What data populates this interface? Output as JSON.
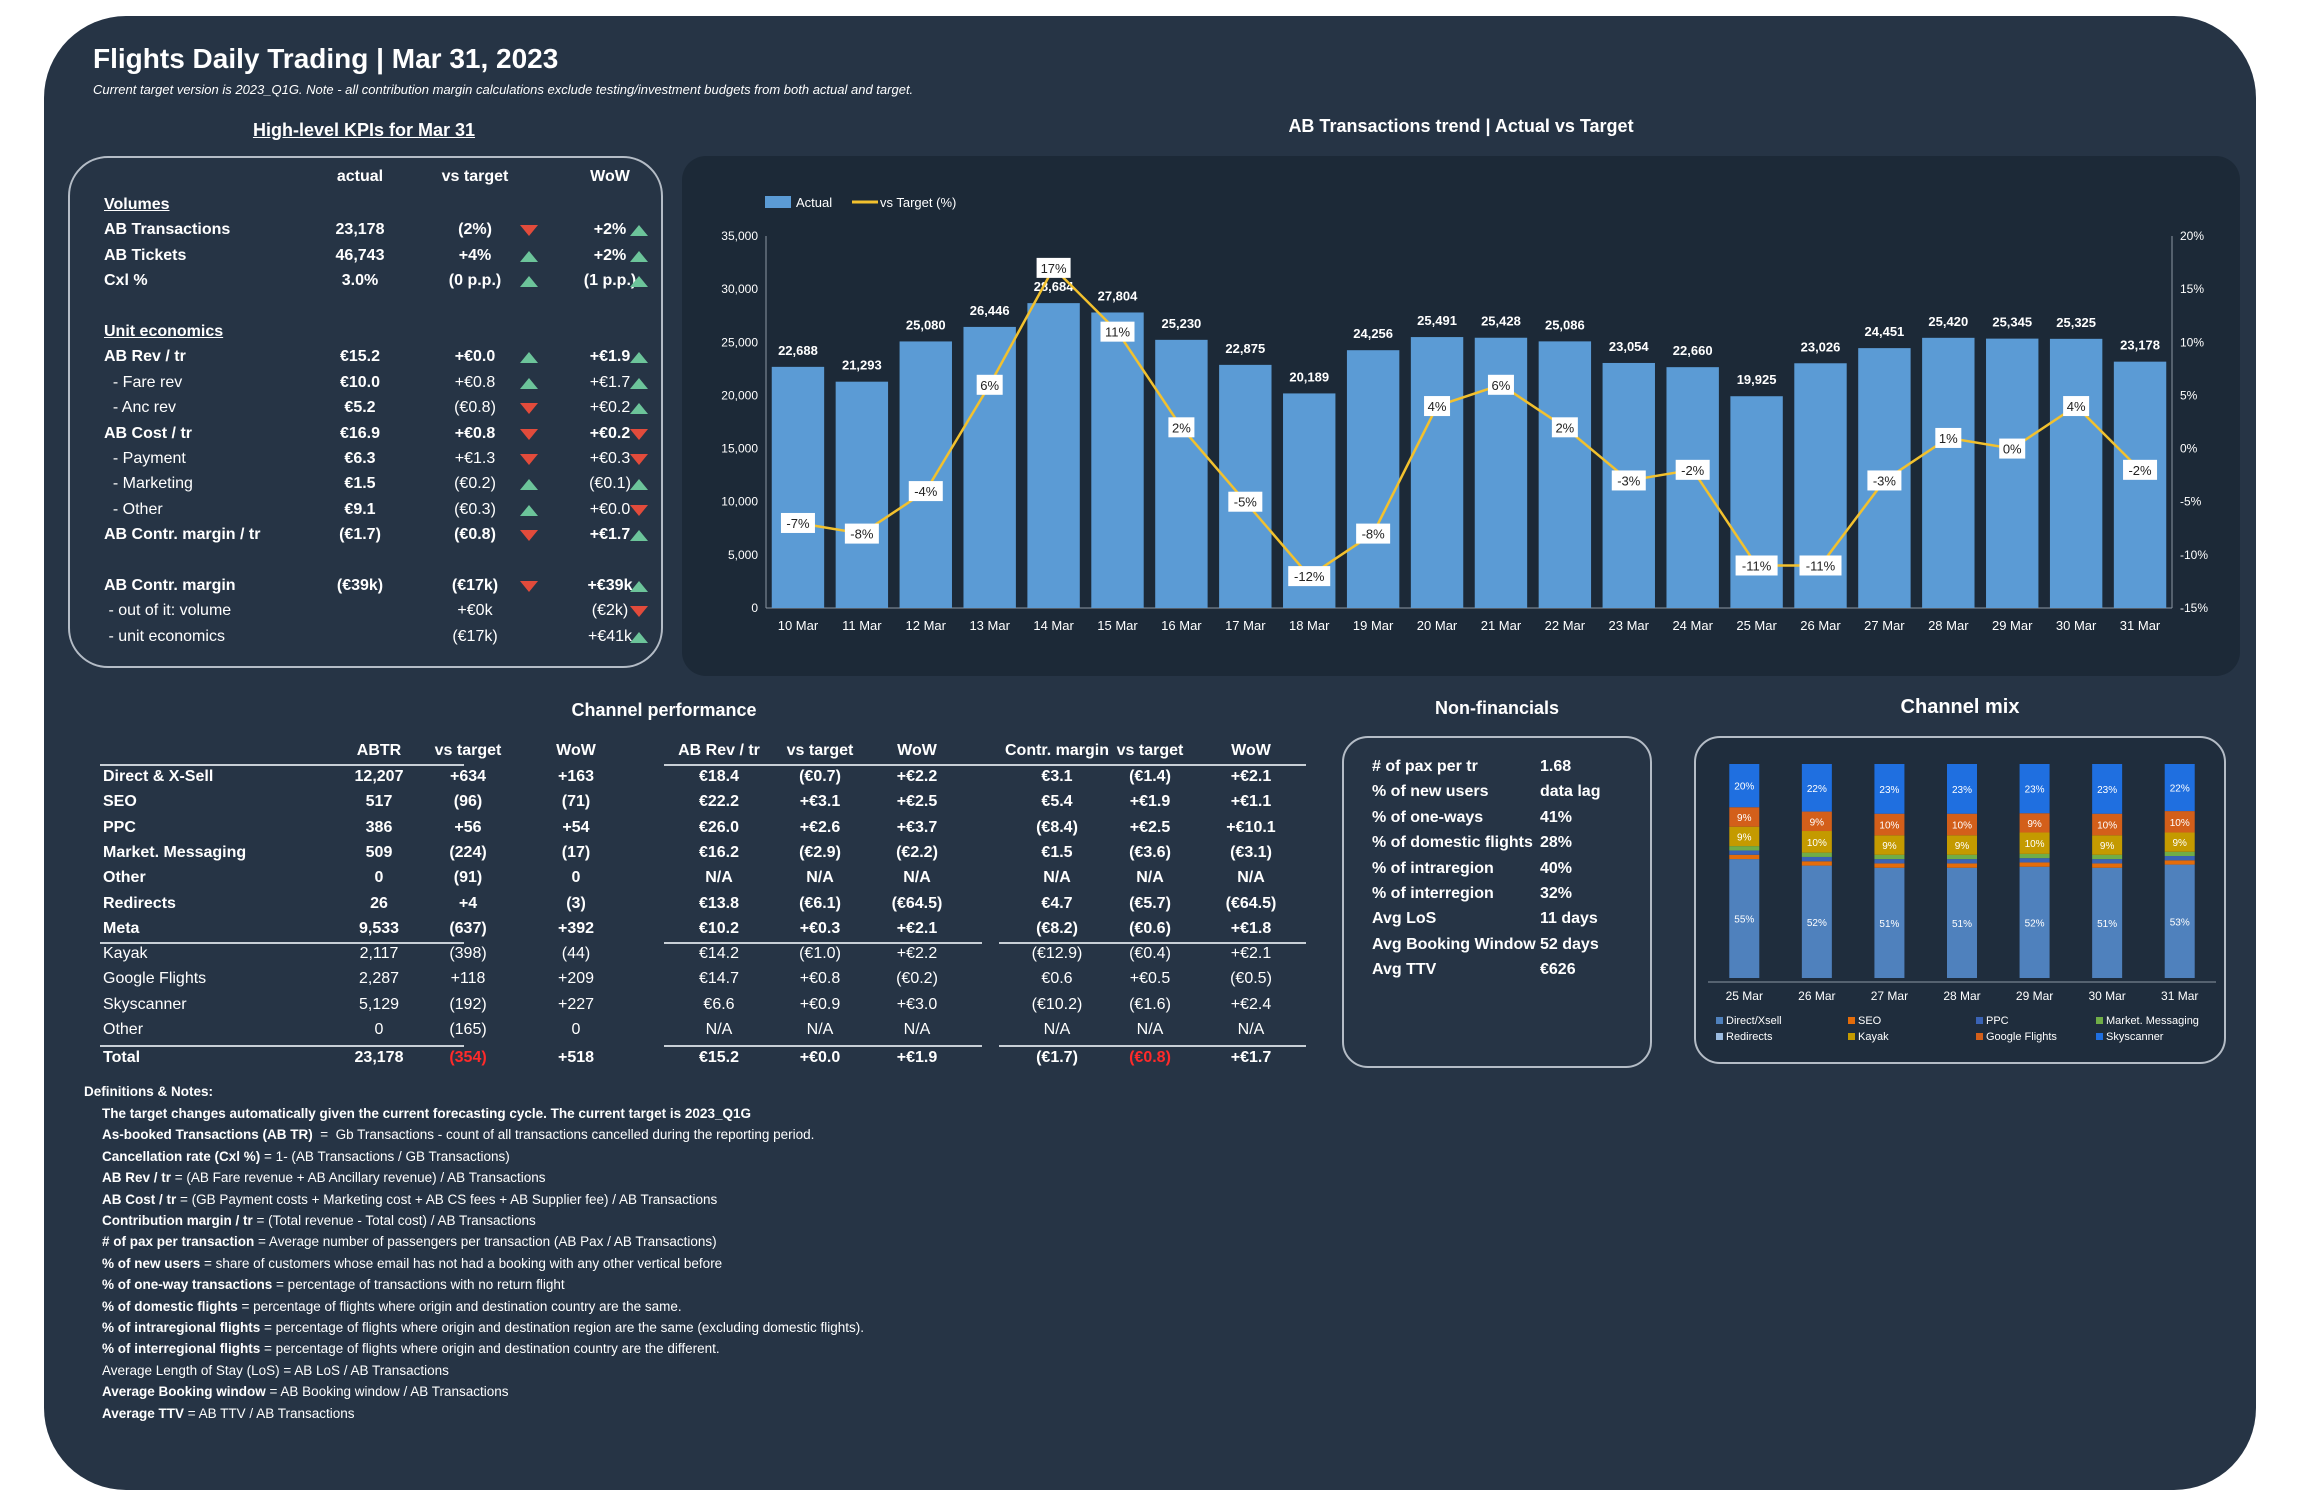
{
  "header": {
    "title": "Flights Daily Trading | Mar 31, 2023",
    "subtitle": "Current target version is 2023_Q1G. Note - all contribution margin calculations exclude testing/investment budgets from both actual and target."
  },
  "kpi": {
    "heading": "High-level KPIs for Mar 31",
    "columns": [
      "actual",
      "vs target",
      "WoW"
    ],
    "rows": [
      {
        "label": "Volumes",
        "type": "section"
      },
      {
        "label": "AB Transactions",
        "bold": true,
        "actual": "23,178",
        "vs_target": "(2%)",
        "vs_dir": "down",
        "wow": "+2%",
        "wow_dir": "up"
      },
      {
        "label": "AB Tickets",
        "bold": true,
        "actual": "46,743",
        "vs_target": "+4%",
        "vs_dir": "up",
        "wow": "+2%",
        "wow_dir": "up"
      },
      {
        "label": "Cxl %",
        "bold": true,
        "actual": "3.0%",
        "vs_target": "(0 p.p.)",
        "vs_dir": "up",
        "wow": "(1 p.p.)",
        "wow_dir": "up"
      },
      {
        "label": "",
        "type": "spacer"
      },
      {
        "label": "Unit economics",
        "type": "section"
      },
      {
        "label": "AB Rev / tr",
        "bold": true,
        "actual": "€15.2",
        "vs_target": "+€0.0",
        "vs_dir": "up",
        "wow": "+€1.9",
        "wow_dir": "up"
      },
      {
        "label": "  - Fare rev",
        "bold": false,
        "actual": "€10.0",
        "vs_target": "+€0.8",
        "vs_dir": "up",
        "wow": "+€1.7",
        "wow_dir": "up"
      },
      {
        "label": "  - Anc rev",
        "bold": false,
        "actual": "€5.2",
        "vs_target": "(€0.8)",
        "vs_dir": "down",
        "wow": "+€0.2",
        "wow_dir": "up"
      },
      {
        "label": "AB Cost / tr",
        "bold": true,
        "actual": "€16.9",
        "vs_target": "+€0.8",
        "vs_dir": "down",
        "wow": "+€0.2",
        "wow_dir": "down"
      },
      {
        "label": "  - Payment",
        "bold": false,
        "actual": "€6.3",
        "vs_target": "+€1.3",
        "vs_dir": "down",
        "wow": "+€0.3",
        "wow_dir": "down"
      },
      {
        "label": "  - Marketing",
        "bold": false,
        "actual": "€1.5",
        "vs_target": "(€0.2)",
        "vs_dir": "up",
        "wow": "(€0.1)",
        "wow_dir": "up"
      },
      {
        "label": "  - Other",
        "bold": false,
        "actual": "€9.1",
        "vs_target": "(€0.3)",
        "vs_dir": "up",
        "wow": "+€0.0",
        "wow_dir": "down"
      },
      {
        "label": "AB Contr. margin / tr",
        "bold": true,
        "actual": "(€1.7)",
        "vs_target": "(€0.8)",
        "vs_dir": "down",
        "wow": "+€1.7",
        "wow_dir": "up"
      },
      {
        "label": "",
        "type": "spacer"
      },
      {
        "label": "AB Contr. margin",
        "bold": true,
        "actual": "(€39k)",
        "vs_target": "(€17k)",
        "vs_dir": "down",
        "wow": "+€39k",
        "wow_dir": "up"
      },
      {
        "label": " - out of it: volume",
        "bold": false,
        "actual": "",
        "vs_target": "+€0k",
        "vs_dir": "",
        "wow": "(€2k)",
        "wow_dir": "down"
      },
      {
        "label": " - unit economics",
        "bold": false,
        "actual": "",
        "vs_target": "(€17k)",
        "vs_dir": "",
        "wow": "+€41k",
        "wow_dir": "up"
      }
    ]
  },
  "trend": {
    "heading": "AB Transactions  trend | Actual vs Target",
    "chart_data": {
      "type": "bar",
      "title": "AB Transactions  trend | Actual vs Target",
      "categories": [
        "10 Mar",
        "11 Mar",
        "12 Mar",
        "13 Mar",
        "14 Mar",
        "15 Mar",
        "16 Mar",
        "17 Mar",
        "18 Mar",
        "19 Mar",
        "20 Mar",
        "21 Mar",
        "22 Mar",
        "23 Mar",
        "24 Mar",
        "25 Mar",
        "26 Mar",
        "27 Mar",
        "28 Mar",
        "29 Mar",
        "30 Mar",
        "31 Mar"
      ],
      "series": [
        {
          "name": "Actual",
          "type": "bar",
          "axis": "left",
          "color": "#5b9bd5",
          "values": [
            22688,
            21293,
            25080,
            26446,
            28684,
            27804,
            25230,
            22875,
            20189,
            24256,
            25491,
            25428,
            25086,
            23054,
            22660,
            19925,
            23026,
            24451,
            25420,
            25345,
            25325,
            23178
          ],
          "labels": [
            "22,688",
            "21,293",
            "25,080",
            "26,446",
            "28,684",
            "27,804",
            "25,230",
            "22,875",
            "20,189",
            "24,256",
            "25,491",
            "25,428",
            "25,086",
            "23,054",
            "22,660",
            "19,925",
            "23,026",
            "24,451",
            "25,420",
            "25,345",
            "25,325",
            "23,178"
          ]
        },
        {
          "name": "vs Target (%)",
          "type": "line",
          "axis": "right",
          "color": "#f2c12e",
          "values": [
            -7,
            -8,
            -4,
            6,
            17,
            11,
            2,
            -5,
            -12,
            -8,
            4,
            6,
            2,
            -3,
            -2,
            -11,
            -11,
            -3,
            1,
            0,
            4,
            -2
          ],
          "labels": [
            "-7%",
            "-8%",
            "-4%",
            "6%",
            "17%",
            "11%",
            "2%",
            "-5%",
            "-12%",
            "-8%",
            "4%",
            "6%",
            "2%",
            "-3%",
            "-2%",
            "-11%",
            "-11%",
            "-3%",
            "1%",
            "0%",
            "4%",
            "-2%"
          ]
        }
      ],
      "y_left": {
        "range": [
          0,
          35000
        ],
        "ticks": [
          "0",
          "5,000",
          "10,000",
          "15,000",
          "20,000",
          "25,000",
          "30,000",
          "35,000"
        ]
      },
      "y_right": {
        "range": [
          -15,
          20
        ],
        "ticks": [
          "-15%",
          "-10%",
          "-5%",
          "0%",
          "5%",
          "10%",
          "15%",
          "20%"
        ]
      },
      "legend": "top-left",
      "grid": false
    }
  },
  "channels": {
    "heading": "Channel  performance",
    "group_headers": [
      [
        "ABTR",
        "vs target",
        "WoW"
      ],
      [
        "AB Rev / tr",
        "vs target",
        "WoW"
      ],
      [
        "Contr. margin",
        "vs target",
        "WoW"
      ]
    ],
    "rows": [
      {
        "name": "Direct & X-Sell",
        "bold": true,
        "v": [
          "12,207",
          "+634",
          "+163",
          "€18.4",
          "(€0.7)",
          "+€2.2",
          "€3.1",
          "(€1.4)",
          "+€2.1"
        ]
      },
      {
        "name": "SEO",
        "bold": true,
        "v": [
          "517",
          "(96)",
          "(71)",
          "€22.2",
          "+€3.1",
          "+€2.5",
          "€5.4",
          "+€1.9",
          "+€1.1"
        ]
      },
      {
        "name": "PPC",
        "bold": true,
        "v": [
          "386",
          "+56",
          "+54",
          "€26.0",
          "+€2.6",
          "+€3.7",
          "(€8.4)",
          "+€2.5",
          "+€10.1"
        ]
      },
      {
        "name": "Market. Messaging",
        "bold": true,
        "v": [
          "509",
          "(224)",
          "(17)",
          "€16.2",
          "(€2.9)",
          "(€2.2)",
          "€1.5",
          "(€3.6)",
          "(€3.1)"
        ]
      },
      {
        "name": "Other",
        "bold": true,
        "v": [
          "0",
          "(91)",
          "0",
          "N/A",
          "N/A",
          "N/A",
          "N/A",
          "N/A",
          "N/A"
        ]
      },
      {
        "name": "Redirects",
        "bold": true,
        "v": [
          "26",
          "+4",
          "(3)",
          "€13.8",
          "(€6.1)",
          "(€64.5)",
          "€4.7",
          "(€5.7)",
          "(€64.5)"
        ]
      },
      {
        "name": "Meta",
        "bold": true,
        "v": [
          "9,533",
          "(637)",
          "+392",
          "€10.2",
          "+€0.3",
          "+€2.1",
          "(€8.2)",
          "(€0.6)",
          "+€1.8"
        ]
      },
      {
        "name": "Kayak",
        "bold": false,
        "v": [
          "2,117",
          "(398)",
          "(44)",
          "€14.2",
          "(€1.0)",
          "+€2.2",
          "(€12.9)",
          "(€0.4)",
          "+€2.1"
        ]
      },
      {
        "name": "Google Flights",
        "bold": false,
        "v": [
          "2,287",
          "+118",
          "+209",
          "€14.7",
          "+€0.8",
          "(€0.2)",
          "€0.6",
          "+€0.5",
          "(€0.5)"
        ]
      },
      {
        "name": "Skyscanner",
        "bold": false,
        "v": [
          "5,129",
          "(192)",
          "+227",
          "€6.6",
          "+€0.9",
          "+€3.0",
          "(€10.2)",
          "(€1.6)",
          "+€2.4"
        ]
      },
      {
        "name": "Other",
        "bold": false,
        "v": [
          "0",
          "(165)",
          "0",
          "N/A",
          "N/A",
          "N/A",
          "N/A",
          "N/A",
          "N/A"
        ]
      },
      {
        "name": "Total",
        "bold": true,
        "v": [
          "23,178",
          "(354)",
          "+518",
          "€15.2",
          "+€0.0",
          "+€1.9",
          "(€1.7)",
          "(€0.8)",
          "+€1.7"
        ],
        "red": [
          1,
          7
        ]
      }
    ]
  },
  "nonfinancials": {
    "heading": "Non-financials",
    "rows": [
      {
        "label": "# of pax per tr",
        "value": "1.68"
      },
      {
        "label": "% of new users",
        "value": "data lag"
      },
      {
        "label": "% of one-ways",
        "value": "41%"
      },
      {
        "label": "% of domestic flights",
        "value": "28%"
      },
      {
        "label": "% of intraregion",
        "value": "40%"
      },
      {
        "label": "% of interregion",
        "value": "32%"
      },
      {
        "label": "Avg LoS",
        "value": "11 days"
      },
      {
        "label": "Avg Booking Window",
        "value": "52 days"
      },
      {
        "label": "Avg TTV",
        "value": "€626"
      }
    ]
  },
  "mix": {
    "heading": "Channel mix",
    "chart_data": {
      "type": "bar",
      "stacked": true,
      "categories": [
        "25 Mar",
        "26 Mar",
        "27 Mar",
        "28 Mar",
        "29 Mar",
        "30 Mar",
        "31 Mar"
      ],
      "series": [
        {
          "name": "Direct/Xsell",
          "color": "#4f81bd",
          "values": [
            55,
            52,
            51,
            51,
            52,
            51,
            53
          ]
        },
        {
          "name": "SEO",
          "color": "#e46c0a",
          "values": [
            2,
            2,
            2,
            2,
            2,
            2,
            2
          ]
        },
        {
          "name": "PPC",
          "color": "#3a63b5",
          "values": [
            2,
            2,
            2,
            2,
            2,
            2,
            2
          ]
        },
        {
          "name": "Market. Messaging",
          "color": "#70ad47",
          "values": [
            2,
            2,
            2,
            2,
            2,
            2,
            2
          ]
        },
        {
          "name": "Redirects",
          "color": "#9bbbe0",
          "values": [
            0,
            0,
            0,
            0,
            0,
            0,
            0
          ]
        },
        {
          "name": "Kayak",
          "color": "#c49a00",
          "values": [
            9,
            10,
            9,
            9,
            10,
            9,
            9
          ]
        },
        {
          "name": "Google Flights",
          "color": "#d35f1a",
          "values": [
            9,
            9,
            10,
            10,
            9,
            10,
            10
          ]
        },
        {
          "name": "Skyscanner",
          "color": "#1f6fe0",
          "values": [
            20,
            22,
            23,
            23,
            23,
            23,
            22
          ]
        }
      ],
      "labels": {
        "Direct/Xsell": [
          "55%",
          "52%",
          "51%",
          "51%",
          "52%",
          "51%",
          "53%"
        ],
        "Kayak": [
          "9%",
          "10%",
          "9%",
          "9%",
          "10%",
          "9%",
          "9%"
        ],
        "Google Flights": [
          "9%",
          "9%",
          "10%",
          "10%",
          "9%",
          "10%",
          "10%"
        ],
        "Skyscanner": [
          "20%",
          "22%",
          "23%",
          "23%",
          "23%",
          "23%",
          "22%"
        ]
      },
      "legend": "bottom"
    }
  },
  "notes": {
    "title": "Definitions & Notes:",
    "lines": [
      {
        "b": "The target changes automatically given the current forecasting cycle. The current target is 2023_Q1G",
        "t": ""
      },
      {
        "b": "As-booked Transactions (AB TR)",
        "t": "  =  Gb Transactions - count of all transactions cancelled during the reporting period."
      },
      {
        "b": "Cancellation rate (Cxl %)",
        "t": " = 1- (AB Transactions / GB Transactions)"
      },
      {
        "b": "AB Rev / tr",
        "t": " = (AB Fare revenue + AB Ancillary revenue) / AB Transactions"
      },
      {
        "b": "AB Cost / tr",
        "t": " = (GB Payment costs + Marketing cost + AB CS fees + AB Supplier fee) / AB Transactions"
      },
      {
        "b": "Contribution margin / tr",
        "t": " = (Total revenue - Total cost) / AB Transactions"
      },
      {
        "b": "# of pax per transaction",
        "t": " = Average number of passengers per transaction (AB Pax / AB Transactions)"
      },
      {
        "b": "% of new users",
        "t": " = share of customers whose email has not had a booking with any other vertical before"
      },
      {
        "b": "% of one-way transactions",
        "t": " = percentage of transactions with no return flight"
      },
      {
        "b": "% of domestic flights",
        "t": " = percentage of flights where origin and destination country are the same."
      },
      {
        "b": "% of intraregional flights",
        "t": " = percentage of flights where origin and destination region are the same (excluding domestic flights)."
      },
      {
        "b": "% of interregional flights",
        "t": " = percentage of flights where origin and destination country are the different."
      },
      {
        "b": "",
        "t": "Average Length of Stay (LoS) = AB LoS / AB Transactions"
      },
      {
        "b": "Average Booking window",
        "t": " = AB Booking window / AB Transactions"
      },
      {
        "b": "Average TTV",
        "t": " = AB TTV / AB Transactions"
      }
    ]
  }
}
